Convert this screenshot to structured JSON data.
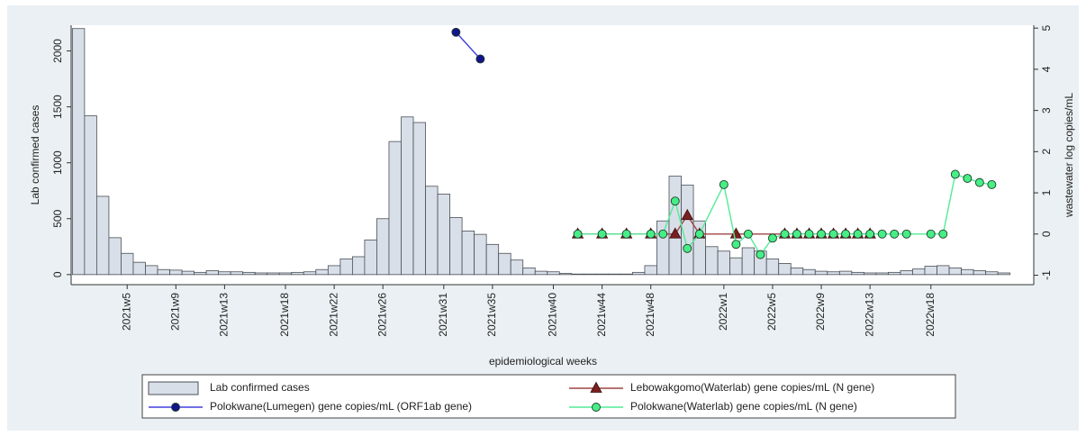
{
  "chart_data": {
    "type": "bar",
    "x_label": "epidemiological weeks",
    "y_label": "Lab confirmed cases",
    "y2_label": "wastewater log copies/mL",
    "xlim": [
      0.4,
      79.3
    ],
    "xticks": [
      {
        "value": 5,
        "label": "2021w5"
      },
      {
        "value": 9,
        "label": "2021w9"
      },
      {
        "value": 13,
        "label": "2021w13"
      },
      {
        "value": 18,
        "label": "2021w18"
      },
      {
        "value": 22,
        "label": "2021w22"
      },
      {
        "value": 26,
        "label": "2021w26"
      },
      {
        "value": 31,
        "label": "2021w31"
      },
      {
        "value": 35,
        "label": "2021w35"
      },
      {
        "value": 40,
        "label": "2021w40"
      },
      {
        "value": 44,
        "label": "2021w44"
      },
      {
        "value": 48,
        "label": "2021w48"
      },
      {
        "value": 54,
        "label": "2022w1"
      },
      {
        "value": 58,
        "label": "2022w5"
      },
      {
        "value": 62,
        "label": "2022w9"
      },
      {
        "value": 66,
        "label": "2022w13"
      },
      {
        "value": 71,
        "label": "2022w18"
      }
    ],
    "ylim": [
      -90,
      2230
    ],
    "yticks": [
      0,
      500,
      1000,
      1500,
      2000
    ],
    "y2lim": [
      -1.23,
      5.07
    ],
    "y2ticks": [
      -1,
      0,
      1,
      2,
      3,
      4,
      5
    ],
    "grid": false,
    "legend": "bottom",
    "series": [
      {
        "name": "Lab confirmed cases",
        "type": "bar",
        "color": "#d9dfe8",
        "edge_color": "#4a4f57",
        "x": [
          1,
          2,
          3,
          4,
          5,
          6,
          7,
          8,
          9,
          10,
          11,
          12,
          13,
          14,
          15,
          16,
          17,
          18,
          19,
          20,
          21,
          22,
          23,
          24,
          25,
          26,
          27,
          28,
          29,
          30,
          31,
          32,
          33,
          34,
          35,
          36,
          37,
          38,
          39,
          40,
          41,
          42,
          43,
          44,
          45,
          46,
          47,
          48,
          49,
          50,
          51,
          52,
          53,
          54,
          55,
          56,
          57,
          58,
          59,
          60,
          61,
          62,
          63,
          64,
          65,
          66,
          67,
          68,
          69,
          70,
          71,
          72,
          73,
          74,
          75,
          76,
          77
        ],
        "values": [
          2200,
          1420,
          700,
          330,
          190,
          110,
          80,
          45,
          40,
          30,
          20,
          35,
          25,
          25,
          20,
          15,
          15,
          15,
          20,
          25,
          45,
          80,
          140,
          160,
          310,
          500,
          1190,
          1410,
          1360,
          790,
          720,
          510,
          390,
          360,
          270,
          190,
          130,
          60,
          30,
          25,
          10,
          5,
          5,
          5,
          5,
          5,
          20,
          80,
          480,
          880,
          800,
          480,
          250,
          210,
          150,
          240,
          210,
          140,
          100,
          60,
          45,
          30,
          25,
          30,
          20,
          15,
          15,
          20,
          35,
          50,
          75,
          80,
          60,
          45,
          35,
          25,
          15
        ]
      },
      {
        "name": "Lebowakgomo(Waterlab) gene copies/mL (N gene)",
        "type": "line",
        "axis": "y2",
        "color": "#a04545",
        "marker": "triangle",
        "marker_color": "#7a2020",
        "x": [
          42,
          44,
          46,
          48,
          50,
          51,
          52,
          55,
          59,
          60,
          61,
          62,
          63,
          64,
          65,
          66
        ],
        "values": [
          0,
          0,
          0,
          0,
          0,
          0.45,
          0,
          0,
          0,
          0,
          0,
          0,
          0,
          0,
          0,
          0
        ]
      },
      {
        "name": "Polokwane(Lumegen) gene copies/mL (ORF1ab gene)",
        "type": "line",
        "axis": "y2",
        "color": "#4040e0",
        "marker": "circle",
        "marker_color": "#14148a",
        "x": [
          32,
          34
        ],
        "values": [
          4.9,
          4.25
        ]
      },
      {
        "name": "Polokwane(Waterlab) gene copies/mL (N gene)",
        "type": "line",
        "axis": "y2",
        "color": "#52eb96",
        "marker": "circle",
        "marker_color": "#47ee85",
        "x": [
          42,
          44,
          46,
          48,
          49,
          50,
          51,
          52,
          54,
          55,
          56,
          57,
          58,
          59,
          60,
          61,
          62,
          63,
          64,
          65,
          66,
          67,
          68,
          69,
          71,
          72,
          73,
          74,
          75,
          76
        ],
        "values": [
          0,
          0,
          0,
          0,
          0,
          0.8,
          -0.35,
          0,
          1.2,
          -0.25,
          0,
          -0.5,
          -0.1,
          0,
          0,
          0,
          0,
          0,
          0,
          0,
          0,
          0,
          0,
          0,
          0,
          0,
          1.45,
          1.35,
          1.25,
          1.2
        ]
      }
    ]
  }
}
